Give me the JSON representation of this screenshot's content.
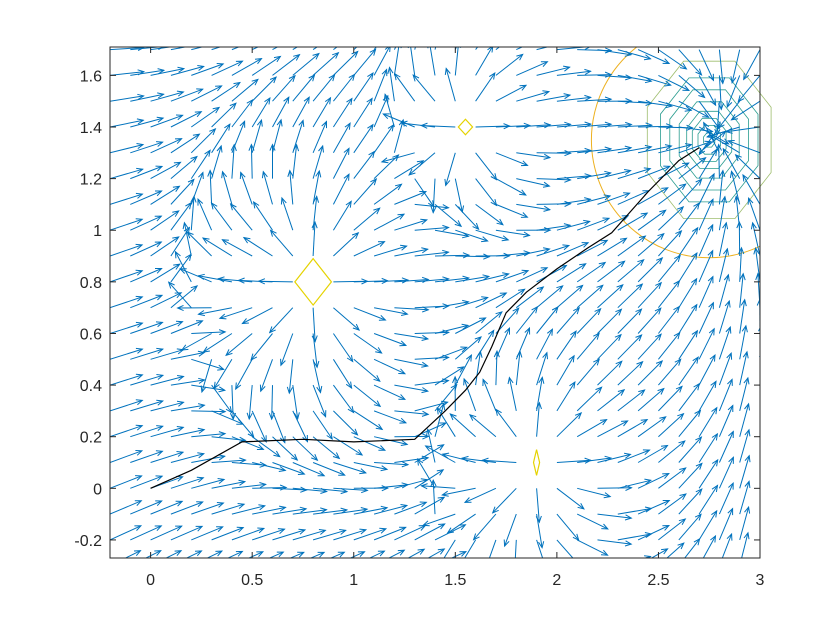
{
  "chart_data": {
    "type": "quiver",
    "title": "",
    "xlabel": "",
    "ylabel": "",
    "xlim": [
      -0.2,
      3.0
    ],
    "ylim": [
      -0.27,
      1.71
    ],
    "xticks": [
      0,
      0.5,
      1,
      1.5,
      2,
      2.5,
      3
    ],
    "yticks": [
      -0.2,
      0,
      0.2,
      0.4,
      0.6,
      0.8,
      1,
      1.2,
      1.4,
      1.6
    ],
    "xtick_labels": [
      "0",
      "0.5",
      "1",
      "1.5",
      "2",
      "2.5",
      "3"
    ],
    "ytick_labels": [
      "-0.2",
      "0",
      "0.2",
      "0.4",
      "0.6",
      "0.8",
      "1",
      "1.2",
      "1.4",
      "1.6"
    ],
    "grid": false,
    "box": true,
    "arrow_color": "#0072BD",
    "path_color": "#000000",
    "contour_color": "#EDB120",
    "inner_contour_color": "#D4D435",
    "goal": [
      2.75,
      1.35
    ],
    "start": [
      0,
      0
    ],
    "obstacles": [
      {
        "x": 0.8,
        "y": 0.8,
        "strength": 1.0
      },
      {
        "x": 1.55,
        "y": 1.4,
        "strength": 0.6
      },
      {
        "x": 1.9,
        "y": 0.1,
        "strength": 0.8
      }
    ],
    "path": [
      [
        0.0,
        0.0
      ],
      [
        0.2,
        0.07
      ],
      [
        0.45,
        0.18
      ],
      [
        0.75,
        0.19
      ],
      [
        1.0,
        0.18
      ],
      [
        1.3,
        0.19
      ],
      [
        1.45,
        0.3
      ],
      [
        1.55,
        0.38
      ],
      [
        1.62,
        0.45
      ],
      [
        1.68,
        0.55
      ],
      [
        1.75,
        0.68
      ],
      [
        1.85,
        0.76
      ],
      [
        2.0,
        0.85
      ],
      [
        2.15,
        0.93
      ],
      [
        2.27,
        0.99
      ],
      [
        2.45,
        1.15
      ],
      [
        2.6,
        1.27
      ],
      [
        2.7,
        1.32
      ]
    ]
  }
}
